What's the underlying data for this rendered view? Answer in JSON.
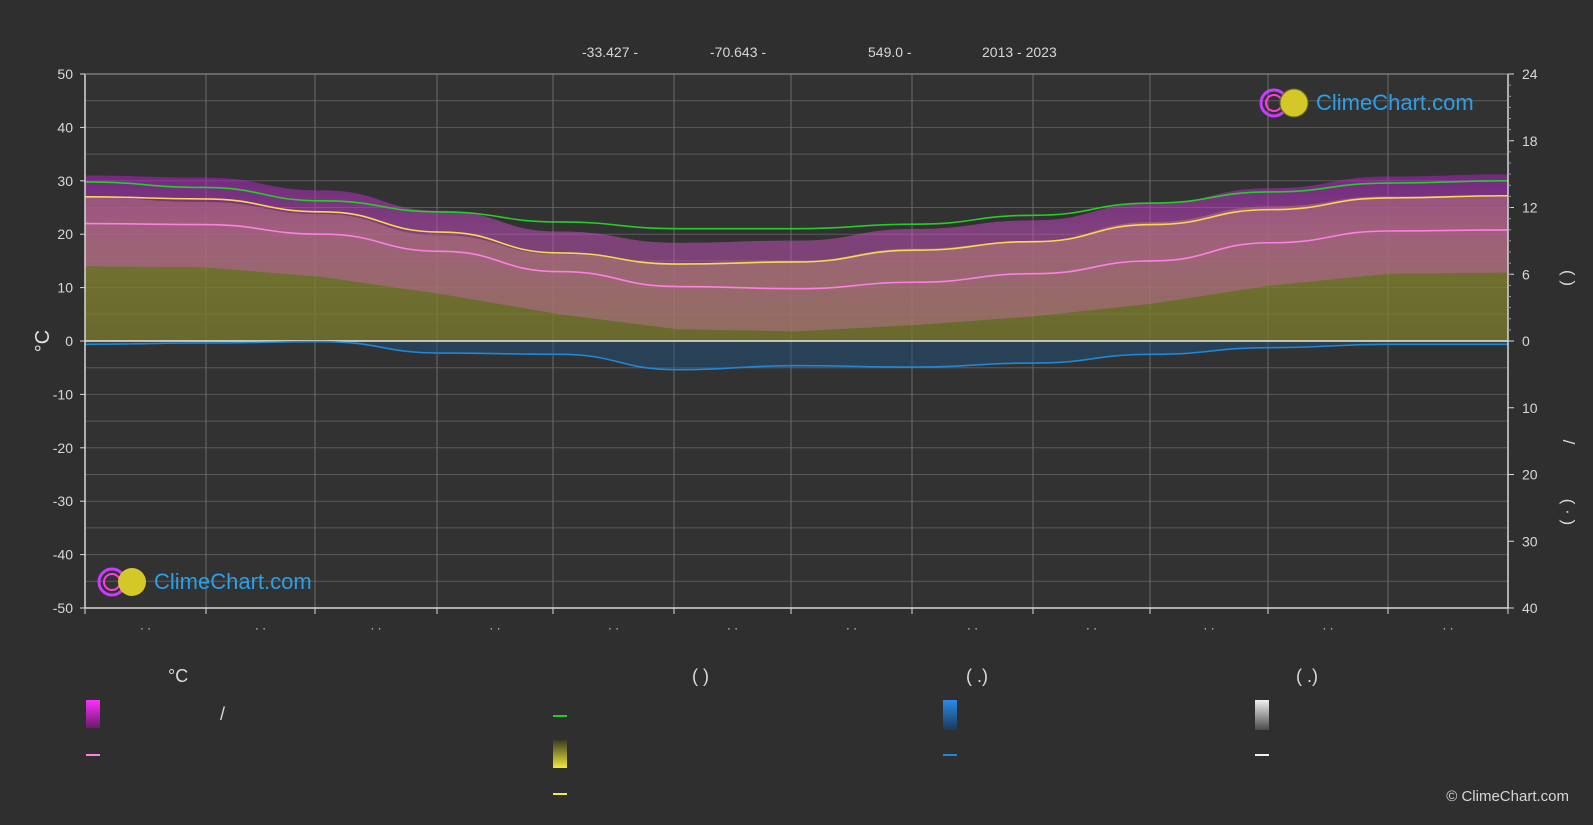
{
  "header": {
    "lat": "-33.427 -",
    "lon": "-70.643 -",
    "elev": "549.0 -",
    "years": "2013 - 2023"
  },
  "axes": {
    "left_label": "°C",
    "left_ticks": [
      "50",
      "40",
      "30",
      "20",
      "10",
      "0",
      "-10",
      "-20",
      "-30",
      "-40",
      "-50"
    ],
    "right_ticks_top": [
      "24",
      "18",
      "12",
      "6",
      "0"
    ],
    "right_ticks_bottom": [
      "10",
      "20",
      "30",
      "40"
    ],
    "right_label_top": "(      )",
    "right_label_bottom": "(  ·  )",
    "right_label_mid": "/",
    "month_tick_labels": [
      "· ·",
      "· ·",
      "· ·",
      "· ·",
      "· ·",
      "· ·",
      "· ·",
      "· ·",
      "· ·",
      "· ·",
      "· ·",
      "· ·"
    ]
  },
  "legend": {
    "col1_title": "°C",
    "col1_range_label": "/",
    "col2_title": "(           )",
    "col3_title": "(    .)",
    "col4_title": "(    .)"
  },
  "logo": {
    "text": "ClimeChart.com"
  },
  "copyright": "© ClimeChart.com",
  "colors": {
    "daylight": "#22d022",
    "sunshine": "#f2ea3c",
    "max_temp": "#f7d94e",
    "mean_temp": "#ff7ee6",
    "precip": "#1f87d6",
    "temp_band": "#d640d0",
    "sun_band": "#8a8a30"
  },
  "chart_data": {
    "type": "area",
    "title": "",
    "x_unit": "month",
    "left_axis": {
      "ylim": [
        -50,
        50
      ]
    },
    "right_axis_top": {
      "ylim": [
        0,
        24
      ]
    },
    "right_axis_bottom": {
      "ylim": [
        0,
        40
      ]
    },
    "series": [
      {
        "key": "daylight",
        "axis": "right_top",
        "x": [
          0,
          1,
          2,
          3,
          4,
          5,
          6,
          7,
          8,
          9,
          10,
          11,
          12
        ],
        "values": [
          14.3,
          13.8,
          12.6,
          11.6,
          10.7,
          10.1,
          10.1,
          10.5,
          11.3,
          12.4,
          13.4,
          14.2,
          14.4
        ]
      },
      {
        "key": "sunshine",
        "axis": "right_top",
        "x": [
          0,
          1,
          2,
          3,
          4,
          5,
          6,
          7,
          8,
          9,
          10,
          11,
          12
        ],
        "values": [
          12.9,
          12.5,
          11.4,
          9.5,
          7.8,
          7.0,
          7.2,
          8.3,
          9.0,
          10.7,
          12.1,
          13.0,
          13.1
        ]
      },
      {
        "key": "max_temp",
        "axis": "left",
        "x": [
          0,
          1,
          2,
          3,
          4,
          5,
          6,
          7,
          8,
          9,
          10,
          11,
          12
        ],
        "values": [
          27.0,
          26.6,
          24.2,
          20.4,
          16.5,
          14.4,
          14.8,
          17.0,
          18.6,
          21.8,
          24.6,
          26.8,
          27.2
        ]
      },
      {
        "key": "mean_temp",
        "axis": "left",
        "x": [
          0,
          1,
          2,
          3,
          4,
          5,
          6,
          7,
          8,
          9,
          10,
          11,
          12
        ],
        "values": [
          22.0,
          21.8,
          20.0,
          16.8,
          13.0,
          10.2,
          9.8,
          11.0,
          12.6,
          15.0,
          18.4,
          20.6,
          20.8
        ]
      },
      {
        "key": "precip",
        "axis": "right_bottom",
        "x": [
          0,
          1,
          2,
          3,
          4,
          5,
          6,
          7,
          8,
          9,
          10,
          11,
          12
        ],
        "values": [
          0.5,
          0.3,
          0.1,
          1.8,
          2.0,
          4.3,
          3.7,
          3.9,
          3.3,
          2.0,
          1.0,
          0.5,
          0.5
        ]
      }
    ]
  }
}
